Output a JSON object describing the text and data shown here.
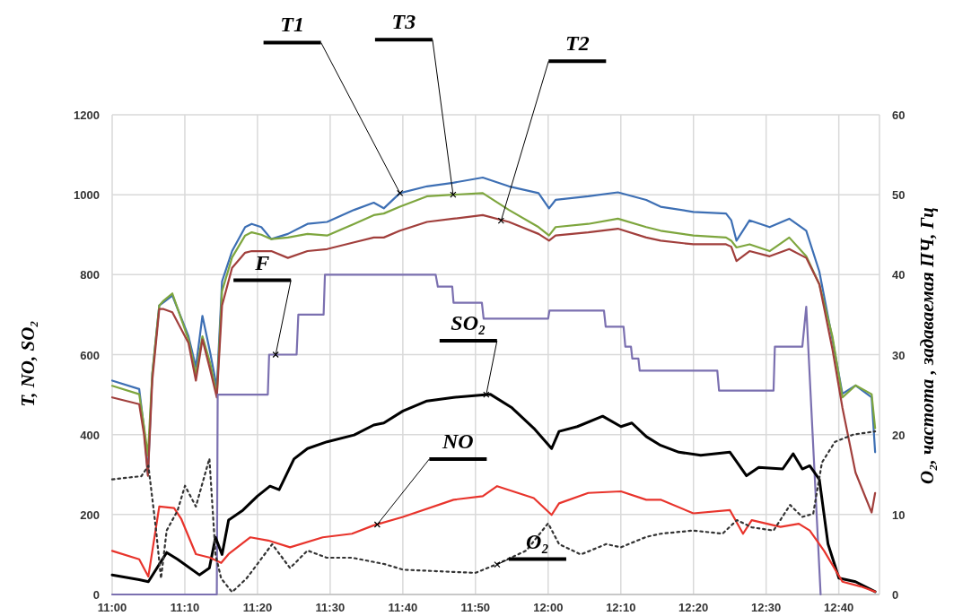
{
  "chart_data": {
    "type": "line",
    "ylabel": "T, NO, SO₂",
    "y2label": "O₂, частота , задаваемая ПЧ, Гц",
    "x": [
      11.0,
      11.062,
      11.073,
      11.082,
      11.092,
      11.108,
      11.118,
      11.138,
      11.175,
      11.192,
      11.207,
      11.225,
      11.24,
      11.252,
      11.275,
      11.305,
      11.32,
      11.342,
      11.365,
      11.403,
      11.448,
      11.493,
      11.555,
      11.6,
      11.623,
      11.66,
      11.722,
      11.782,
      11.85,
      11.91,
      11.978,
      12.002,
      12.017,
      12.092,
      12.16,
      12.225,
      12.258,
      12.333,
      12.408,
      12.42,
      12.432,
      12.462,
      12.508,
      12.553,
      12.592,
      12.622,
      12.652,
      12.675,
      12.705,
      12.742,
      12.75
    ],
    "series": [
      {
        "color": "#3d6fb4",
        "values": [
          535,
          514,
          416,
          300,
          552,
          723,
          731,
          748,
          646,
          569,
          697,
          604,
          518,
          783,
          859,
          919,
          927,
          919,
          889,
          902,
          927,
          932,
          962,
          980,
          966,
          1004,
          1021,
          1030,
          1043,
          1021,
          1004,
          966,
          987,
          996,
          1006,
          987,
          970,
          957,
          953,
          936,
          885,
          936,
          919,
          940,
          910,
          808,
          638,
          502,
          523,
          493,
          356
        ]
      },
      {
        "color": "#7ea63e",
        "values": [
          522,
          501,
          420,
          348,
          552,
          723,
          735,
          753,
          638,
          552,
          646,
          578,
          500,
          759,
          843,
          898,
          906,
          900,
          889,
          893,
          902,
          898,
          927,
          949,
          953,
          970,
          996,
          1000,
          1004,
          962,
          919,
          898,
          919,
          927,
          940,
          919,
          910,
          898,
          893,
          885,
          868,
          876,
          859,
          893,
          846,
          776,
          646,
          493,
          523,
          501,
          416
        ]
      },
      {
        "color": "#a13f3c",
        "values": [
          493,
          476,
          400,
          297,
          535,
          714,
          714,
          706,
          629,
          535,
          638,
          561,
          493,
          723,
          817,
          855,
          859,
          859,
          859,
          842,
          859,
          864,
          881,
          893,
          893,
          910,
          932,
          940,
          949,
          932,
          902,
          885,
          898,
          906,
          915,
          893,
          885,
          876,
          876,
          870,
          834,
          859,
          846,
          864,
          842,
          776,
          614,
          467,
          305,
          205,
          254
        ]
      },
      {
        "color": "#7b70b0",
        "axis": "y2",
        "x": [
          11.0,
          11.24,
          11.242,
          11.357,
          11.36,
          11.423,
          11.427,
          11.485,
          11.488,
          11.742,
          11.747,
          11.78,
          11.783,
          11.848,
          11.852,
          12.0,
          12.003,
          12.128,
          12.132,
          12.173,
          12.177,
          12.19,
          12.193,
          12.207,
          12.21,
          12.388,
          12.392,
          12.517,
          12.52,
          12.583,
          12.592,
          12.625
        ],
        "values": [
          0,
          0,
          25,
          25,
          30,
          30,
          35,
          35,
          40,
          40,
          38.5,
          38.5,
          36.5,
          36.5,
          34.5,
          34.5,
          35.5,
          35.5,
          33.5,
          33.5,
          31,
          31,
          29.5,
          29.5,
          28,
          28,
          25.5,
          25.5,
          31,
          31,
          36,
          0
        ]
      },
      {
        "color": "#000000",
        "x": [
          11.0,
          11.062,
          11.083,
          11.125,
          11.15,
          11.2,
          11.223,
          11.237,
          11.252,
          11.267,
          11.3,
          11.333,
          11.362,
          11.383,
          11.417,
          11.448,
          11.493,
          11.555,
          11.6,
          11.623,
          11.667,
          11.722,
          11.783,
          11.867,
          11.917,
          11.967,
          12.008,
          12.025,
          12.067,
          12.125,
          12.167,
          12.192,
          12.225,
          12.258,
          12.3,
          12.35,
          12.417,
          12.455,
          12.483,
          12.538,
          12.562,
          12.583,
          12.6,
          12.622,
          12.642,
          12.667,
          12.705,
          12.75
        ],
        "values": [
          49,
          37,
          32,
          105,
          88,
          49,
          66,
          143,
          100,
          186,
          211,
          246,
          271,
          262,
          339,
          365,
          382,
          399,
          424,
          429,
          459,
          484,
          493,
          501,
          467,
          416,
          365,
          408,
          420,
          446,
          420,
          429,
          395,
          373,
          356,
          348,
          356,
          297,
          318,
          314,
          352,
          314,
          322,
          288,
          126,
          41,
          32,
          7
        ]
      },
      {
        "color": "#e8342c",
        "x": [
          11.0,
          11.062,
          11.083,
          11.108,
          11.142,
          11.158,
          11.192,
          11.225,
          11.25,
          11.267,
          11.317,
          11.358,
          11.408,
          11.483,
          11.55,
          11.6,
          11.667,
          11.783,
          11.85,
          11.883,
          11.967,
          12.008,
          12.025,
          12.092,
          12.167,
          12.225,
          12.258,
          12.333,
          12.417,
          12.447,
          12.467,
          12.533,
          12.575,
          12.6,
          12.633,
          12.675,
          12.717,
          12.75
        ],
        "values": [
          109,
          88,
          45,
          220,
          216,
          190,
          101,
          92,
          79,
          101,
          143,
          135,
          118,
          143,
          152,
          173,
          194,
          237,
          246,
          271,
          241,
          199,
          228,
          254,
          258,
          237,
          237,
          203,
          211,
          152,
          186,
          169,
          177,
          160,
          109,
          32,
          20,
          7
        ]
      },
      {
        "color": "#333333",
        "axis": "y2",
        "line_style": "dotted",
        "x": [
          11.0,
          11.067,
          11.083,
          11.1,
          11.112,
          11.125,
          11.15,
          11.167,
          11.192,
          11.223,
          11.237,
          11.25,
          11.275,
          11.308,
          11.333,
          11.367,
          11.408,
          11.448,
          11.492,
          11.55,
          11.625,
          11.667,
          11.75,
          11.833,
          11.883,
          11.95,
          12.0,
          12.025,
          12.075,
          12.133,
          12.167,
          12.225,
          12.258,
          12.333,
          12.4,
          12.433,
          12.467,
          12.517,
          12.555,
          12.583,
          12.608,
          12.628,
          12.658,
          12.7,
          12.75
        ],
        "values": [
          14.4,
          14.8,
          16.1,
          8.4,
          2,
          8,
          10.5,
          13.6,
          11,
          17,
          5,
          2,
          0.3,
          2,
          3.8,
          6.3,
          3.3,
          5.5,
          4.6,
          4.6,
          3.8,
          3.1,
          2.9,
          2.7,
          3.8,
          5.5,
          8.9,
          6.3,
          5,
          6.3,
          5.9,
          7.2,
          7.6,
          8,
          7.6,
          9.3,
          8.4,
          8,
          11.2,
          9.7,
          10.1,
          16.5,
          19.1,
          20,
          20.4
        ]
      }
    ],
    "xlim": [
      11.0,
      12.76
    ],
    "xticks": [
      {
        "value": 11.0,
        "label": "11:00"
      },
      {
        "value": 11.1667,
        "label": "11:10"
      },
      {
        "value": 11.3333,
        "label": "11:20"
      },
      {
        "value": 11.5,
        "label": "11:30"
      },
      {
        "value": 11.6667,
        "label": "11:40"
      },
      {
        "value": 11.8333,
        "label": "11:50"
      },
      {
        "value": 12.0,
        "label": "12:00"
      },
      {
        "value": 12.1667,
        "label": "12:10"
      },
      {
        "value": 12.3333,
        "label": "12:20"
      },
      {
        "value": 12.5,
        "label": "12:30"
      },
      {
        "value": 12.6667,
        "label": "12:40"
      }
    ],
    "ylim": [
      0,
      1200
    ],
    "yticks": [
      0,
      200,
      400,
      600,
      800,
      1000,
      1200
    ],
    "y2lim": [
      0,
      60
    ],
    "y2ticks": [
      0,
      10,
      20,
      30,
      40,
      50,
      60
    ],
    "grid": true,
    "marker": "none",
    "line_style": "solid",
    "annotations": [
      {
        "text": "T1",
        "x": 11.66,
        "y": 1004
      },
      {
        "text": "T3",
        "x": 11.782,
        "y": 1000
      },
      {
        "text": "T2",
        "x": 11.892,
        "y": 935
      },
      {
        "text": "F",
        "x": 11.375,
        "y": 600
      },
      {
        "text": "SO₂",
        "x": 11.858,
        "y": 500
      },
      {
        "text": "NO",
        "x": 11.608,
        "y": 175
      },
      {
        "text": "O₂",
        "x": 11.883,
        "y": 75
      }
    ]
  }
}
